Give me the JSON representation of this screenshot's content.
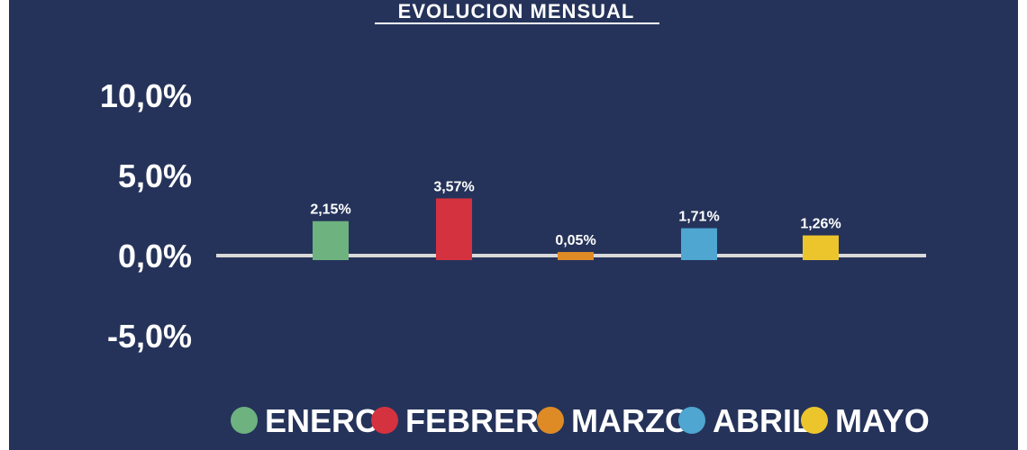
{
  "chart_data": {
    "type": "bar",
    "title": "EVOLUCION MENSUAL",
    "categories": [
      "ENERO",
      "FEBRERO",
      "MARZO",
      "ABRIL",
      "MAYO"
    ],
    "values": [
      2.15,
      3.57,
      0.05,
      1.71,
      1.26
    ],
    "value_labels": [
      "2,15%",
      "3,57%",
      "0,05%",
      "1,71%",
      "1,26%"
    ],
    "colors": [
      "#6db27f",
      "#d5323f",
      "#de8b26",
      "#4ea6d1",
      "#ecc52c"
    ],
    "yticks": [
      10,
      5,
      0,
      -5
    ],
    "ytick_labels": [
      "10,0%",
      "5,0%",
      "0,0%",
      "-5,0%"
    ],
    "ylim": [
      -5,
      10
    ],
    "xlabel": "",
    "ylabel": "",
    "grid": false,
    "legend": {
      "position": "bottom",
      "entries": [
        "ENERO",
        "FEBRERO",
        "MARZO",
        "ABRIL",
        "MAYO"
      ]
    },
    "background_color": "#25335a",
    "axis_color": "#d9d9d9"
  }
}
